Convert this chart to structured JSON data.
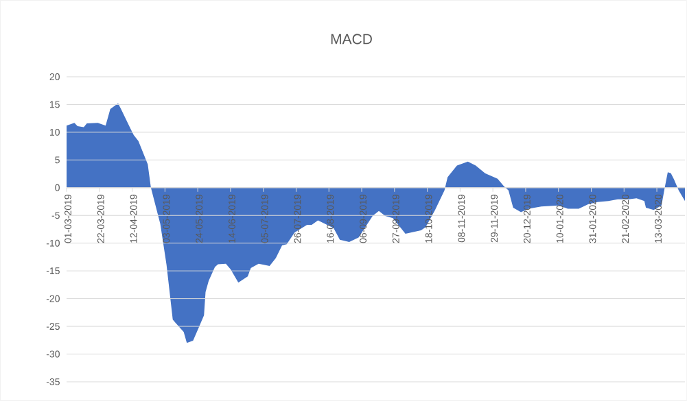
{
  "chart_data": {
    "type": "area",
    "title": "MACD",
    "color": "#4472c4",
    "grid": "y",
    "xlim": [
      "2019-03-01",
      "2020-03-31"
    ],
    "xticks": [
      {
        "value": "2019-03-01",
        "label": "01-03-2019"
      },
      {
        "value": "2019-03-22",
        "label": "22-03-2019"
      },
      {
        "value": "2019-04-12",
        "label": "12-04-2019"
      },
      {
        "value": "2019-05-03",
        "label": "03-05-2019"
      },
      {
        "value": "2019-05-24",
        "label": "24-05-2019"
      },
      {
        "value": "2019-06-14",
        "label": "14-06-2019"
      },
      {
        "value": "2019-07-05",
        "label": "05-07-2019"
      },
      {
        "value": "2019-07-26",
        "label": "26-07-2019"
      },
      {
        "value": "2019-08-16",
        "label": "16-08-2019"
      },
      {
        "value": "2019-09-06",
        "label": "06-09-2019"
      },
      {
        "value": "2019-09-27",
        "label": "27-09-2019"
      },
      {
        "value": "2019-10-18",
        "label": "18-10-2019"
      },
      {
        "value": "2019-11-08",
        "label": "08-11-2019"
      },
      {
        "value": "2019-11-29",
        "label": "29-11-2019"
      },
      {
        "value": "2019-12-20",
        "label": "20-12-2019"
      },
      {
        "value": "2020-01-10",
        "label": "10-01-2020"
      },
      {
        "value": "2020-01-31",
        "label": "31-01-2020"
      },
      {
        "value": "2020-02-21",
        "label": "21-02-2020"
      },
      {
        "value": "2020-03-13",
        "label": "13-03-2020"
      }
    ],
    "ylim": [
      -35,
      20
    ],
    "yticks": [
      -35,
      -30,
      -25,
      -20,
      -15,
      -10,
      -5,
      0,
      5,
      10,
      15,
      20
    ],
    "x": [
      "2019-03-01",
      "2019-03-06",
      "2019-03-08",
      "2019-03-12",
      "2019-03-14",
      "2019-03-21",
      "2019-03-26",
      "2019-03-29",
      "2019-04-03",
      "2019-04-05",
      "2019-04-11",
      "2019-04-13",
      "2019-04-16",
      "2019-04-22",
      "2019-04-24",
      "2019-04-30",
      "2019-05-04",
      "2019-05-08",
      "2019-05-15",
      "2019-05-17",
      "2019-05-21",
      "2019-05-25",
      "2019-05-28",
      "2019-05-29",
      "2019-05-31",
      "2019-06-04",
      "2019-06-06",
      "2019-06-11",
      "2019-06-14",
      "2019-06-19",
      "2019-06-25",
      "2019-06-27",
      "2019-07-02",
      "2019-07-09",
      "2019-07-13",
      "2019-07-17",
      "2019-07-20",
      "2019-07-25",
      "2019-08-02",
      "2019-08-05",
      "2019-08-09",
      "2019-08-19",
      "2019-08-23",
      "2019-08-29",
      "2019-09-04",
      "2019-09-13",
      "2019-09-17",
      "2019-09-21",
      "2019-09-26",
      "2019-10-04",
      "2019-10-14",
      "2019-10-17",
      "2019-10-23",
      "2019-10-29",
      "2019-10-31",
      "2019-11-06",
      "2019-11-13",
      "2019-11-18",
      "2019-11-24",
      "2019-11-28",
      "2019-12-02",
      "2019-12-06",
      "2019-12-09",
      "2019-12-12",
      "2019-12-17",
      "2019-12-22",
      "2019-12-30",
      "2020-01-10",
      "2020-01-16",
      "2020-01-23",
      "2020-01-29",
      "2020-02-04",
      "2020-02-11",
      "2020-02-17",
      "2020-02-24",
      "2020-02-29",
      "2020-03-05",
      "2020-03-06",
      "2020-03-11",
      "2020-03-16",
      "2020-03-18",
      "2020-03-20",
      "2020-03-22",
      "2020-03-24",
      "2020-03-27",
      "2020-03-31"
    ],
    "values": [
      11.2,
      11.7,
      11.1,
      10.9,
      11.6,
      11.7,
      11.2,
      14.2,
      15.2,
      14.1,
      10.6,
      9.5,
      8.4,
      4.2,
      0,
      -6.5,
      -13.9,
      -23.8,
      -26,
      -28,
      -27.6,
      -25,
      -23,
      -18.8,
      -16.8,
      -14.3,
      -13.8,
      -13.7,
      -14.7,
      -17.1,
      -16,
      -14.5,
      -13.7,
      -14.1,
      -12.7,
      -10.4,
      -10.2,
      -8.1,
      -6.7,
      -6.7,
      -5.9,
      -7.3,
      -9.4,
      -9.8,
      -9,
      -5.1,
      -4.2,
      -5.1,
      -5.5,
      -8.3,
      -7.7,
      -7.1,
      -4,
      -0.5,
      1.9,
      4,
      4.7,
      4,
      2.6,
      2.1,
      1.6,
      0.3,
      -0.5,
      -3.6,
      -4.4,
      -3.8,
      -3.4,
      -3.2,
      -3.8,
      -3.8,
      -3,
      -2.6,
      -2.4,
      -2.1,
      -2.1,
      -1.9,
      -2.4,
      -3.6,
      -4,
      -3.2,
      -0.1,
      2.8,
      2.6,
      1.5,
      -0.5,
      -2.4
    ]
  }
}
